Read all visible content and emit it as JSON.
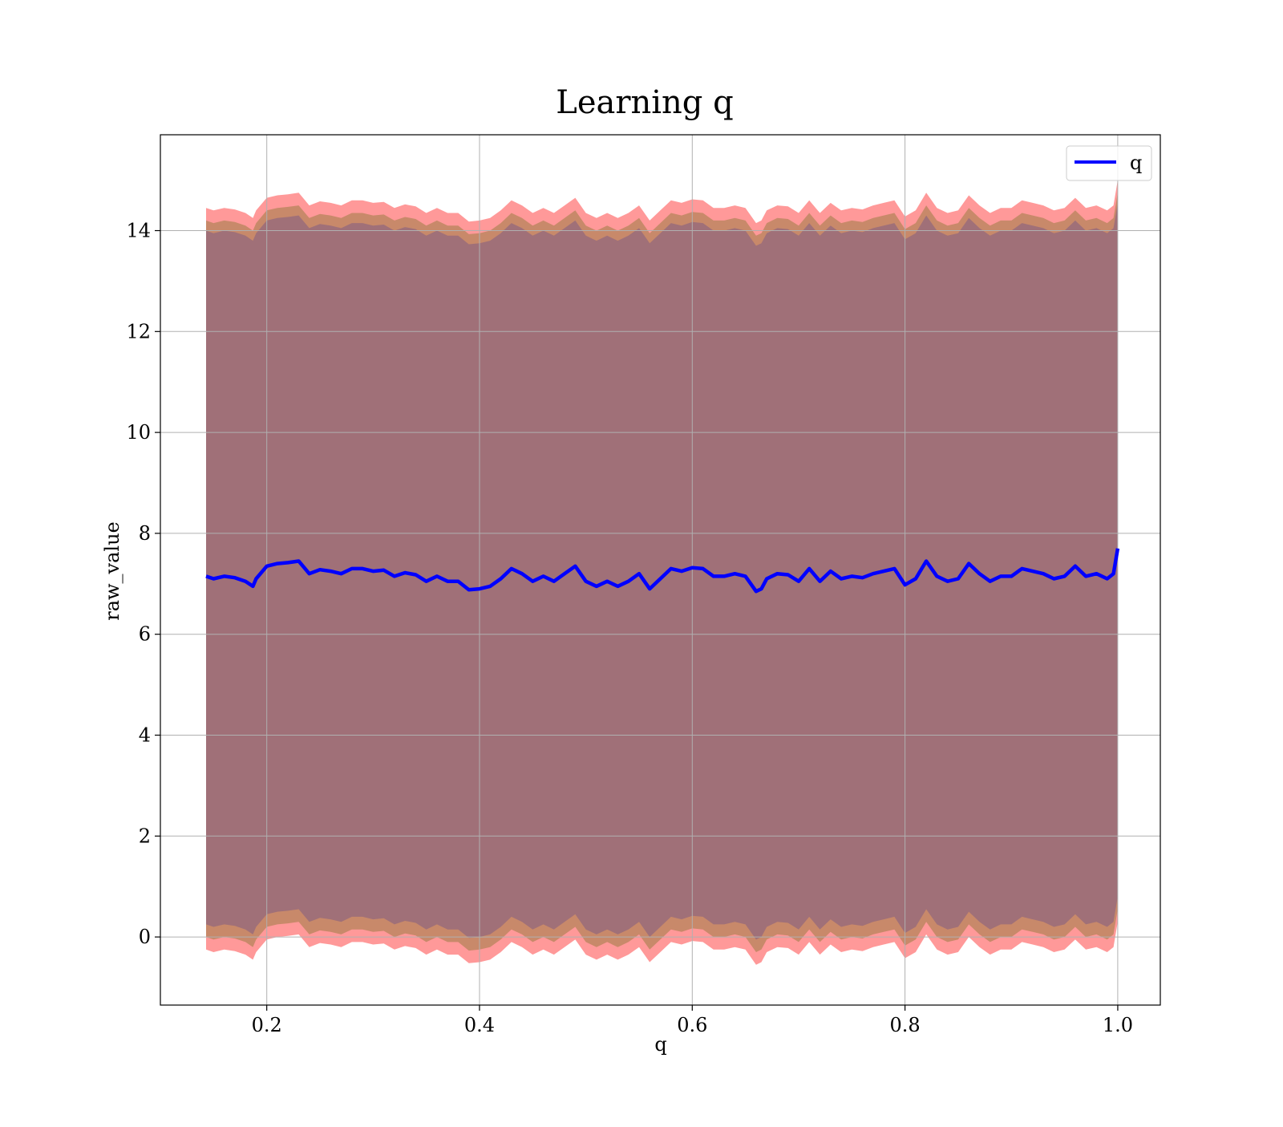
{
  "chart_data": {
    "type": "line",
    "title": "Learning q",
    "xlabel": "q",
    "ylabel": "raw_value",
    "xlim": [
      0.1,
      1.04
    ],
    "ylim": [
      -1.35,
      15.9
    ],
    "xticks": [
      0.2,
      0.4,
      0.6,
      0.8,
      1.0
    ],
    "xtick_labels": [
      "0.2",
      "0.4",
      "0.6",
      "0.8",
      "1.0"
    ],
    "yticks": [
      0,
      2,
      4,
      6,
      8,
      10,
      12,
      14
    ],
    "ytick_labels": [
      "0",
      "2",
      "4",
      "6",
      "8",
      "10",
      "12",
      "14"
    ],
    "grid": true,
    "legend": {
      "placement": "top-right",
      "entries": [
        {
          "label": "q",
          "color": "#0000ff"
        }
      ]
    },
    "colors": {
      "line": "#0000ff",
      "outer_band": "#ff9999",
      "middle_band": "#c8896a",
      "inner_band": "#a07078",
      "grid": "#b0b0b0"
    },
    "series": [
      {
        "name": "q",
        "x": [
          0.143,
          0.15,
          0.16,
          0.17,
          0.18,
          0.187,
          0.19,
          0.2,
          0.21,
          0.22,
          0.23,
          0.24,
          0.25,
          0.26,
          0.27,
          0.28,
          0.29,
          0.3,
          0.31,
          0.32,
          0.33,
          0.34,
          0.35,
          0.36,
          0.37,
          0.38,
          0.39,
          0.4,
          0.41,
          0.42,
          0.43,
          0.44,
          0.45,
          0.46,
          0.47,
          0.48,
          0.49,
          0.5,
          0.51,
          0.52,
          0.53,
          0.54,
          0.55,
          0.56,
          0.57,
          0.58,
          0.59,
          0.6,
          0.61,
          0.62,
          0.63,
          0.64,
          0.65,
          0.66,
          0.665,
          0.67,
          0.68,
          0.69,
          0.7,
          0.71,
          0.72,
          0.73,
          0.74,
          0.75,
          0.76,
          0.77,
          0.78,
          0.79,
          0.8,
          0.81,
          0.82,
          0.83,
          0.84,
          0.85,
          0.86,
          0.87,
          0.88,
          0.89,
          0.9,
          0.91,
          0.92,
          0.93,
          0.94,
          0.95,
          0.96,
          0.97,
          0.98,
          0.99,
          0.996,
          1.0
        ],
        "y": [
          7.15,
          7.1,
          7.15,
          7.12,
          7.05,
          6.95,
          7.1,
          7.35,
          7.4,
          7.42,
          7.45,
          7.2,
          7.28,
          7.25,
          7.2,
          7.3,
          7.3,
          7.25,
          7.27,
          7.15,
          7.22,
          7.18,
          7.05,
          7.15,
          7.05,
          7.05,
          6.88,
          6.9,
          6.95,
          7.1,
          7.3,
          7.2,
          7.05,
          7.15,
          7.05,
          7.2,
          7.35,
          7.05,
          6.95,
          7.05,
          6.95,
          7.05,
          7.2,
          6.9,
          7.1,
          7.3,
          7.25,
          7.32,
          7.3,
          7.15,
          7.15,
          7.2,
          7.15,
          6.85,
          6.9,
          7.1,
          7.2,
          7.18,
          7.05,
          7.3,
          7.05,
          7.25,
          7.1,
          7.15,
          7.12,
          7.2,
          7.25,
          7.3,
          6.98,
          7.1,
          7.45,
          7.15,
          7.05,
          7.1,
          7.4,
          7.2,
          7.05,
          7.15,
          7.15,
          7.3,
          7.25,
          7.2,
          7.1,
          7.15,
          7.35,
          7.15,
          7.2,
          7.1,
          7.2,
          7.7
        ]
      }
    ],
    "bands": [
      {
        "lower_offset": -7.4,
        "upper_offset": 7.3
      },
      {
        "lower_offset": -7.15,
        "upper_offset": 7.05
      },
      {
        "lower_offset": -6.9,
        "upper_offset": 6.85
      }
    ]
  }
}
